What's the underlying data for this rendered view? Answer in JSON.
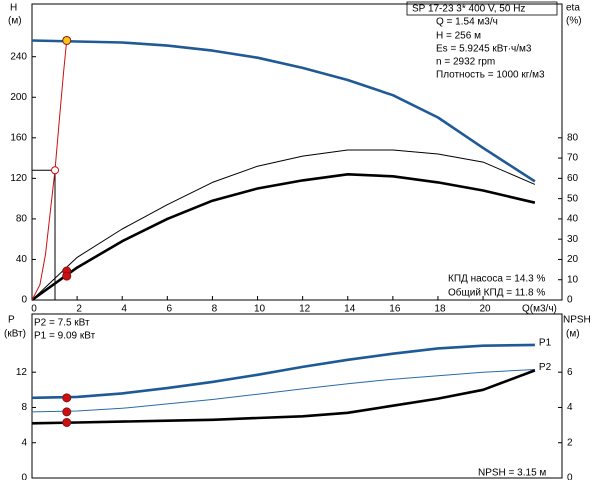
{
  "chart_data": [
    {
      "type": "line",
      "title": "SP 17-23   3* 400 V, 50 Hz",
      "annotations": [
        "Q = 1.54 м3/ч",
        "H = 256 м",
        "Es = 5.9245 кВт·ч/м3",
        "n = 2932 rpm",
        "Плотность = 1000 кг/м3",
        "КПД насоса = 14.3 %",
        "Общий КПД = 11.8 %"
      ],
      "ylabel": "H",
      "yunit": "(м)",
      "y2label": "eta",
      "y2unit": "(%)",
      "xlabel": "Q(м3/ч)",
      "xlim": [
        0,
        23.5
      ],
      "xticks": [
        0,
        2,
        4,
        6,
        8,
        10,
        12,
        14,
        16,
        18,
        20
      ],
      "ylim": [
        0,
        292
      ],
      "yticks": [
        0,
        40,
        80,
        120,
        160,
        200,
        240
      ],
      "y2lim": [
        0,
        146
      ],
      "y2ticks": [
        0,
        10,
        20,
        30,
        40,
        50,
        60,
        70,
        80
      ],
      "series": [
        {
          "color": "#1f5a96",
          "style": "thick",
          "x": [
            0,
            2,
            4,
            6,
            8,
            10,
            12,
            14,
            16,
            18,
            20,
            22.3
          ],
          "values": [
            256,
            255,
            254,
            251,
            246,
            239,
            229,
            217,
            202,
            180,
            150,
            117
          ]
        },
        {
          "color": "#000000",
          "style": "thin",
          "axis": "y2",
          "x": [
            0,
            2,
            4,
            6,
            8,
            10,
            12,
            14,
            16,
            18,
            20,
            22.3
          ],
          "values": [
            0,
            21,
            35,
            47,
            58,
            66,
            71,
            74,
            74,
            72,
            68,
            57
          ]
        },
        {
          "color": "#000000",
          "style": "thick",
          "axis": "y2",
          "x": [
            0,
            2,
            4,
            6,
            8,
            10,
            12,
            14,
            16,
            18,
            20,
            22.3
          ],
          "values": [
            0,
            16,
            29,
            40,
            49,
            55,
            59,
            62,
            61,
            58,
            54,
            48
          ]
        },
        {
          "color": "#cc1010",
          "style": "thin",
          "x": [
            0,
            0.35,
            0.6,
            0.85,
            1.02,
            1.2,
            1.4,
            1.54
          ],
          "values": [
            0,
            15,
            45,
            95,
            128,
            175,
            225,
            256
          ]
        }
      ],
      "points": [
        {
          "x": 1.54,
          "y": 256,
          "color": "#f5c518"
        },
        {
          "x": 1.02,
          "y": 128,
          "color": "#cc1010",
          "hollow": true
        },
        {
          "x": 1.54,
          "y": 14.3,
          "axis": "y2",
          "color": "#cc1010"
        },
        {
          "x": 1.54,
          "y": 11.8,
          "axis": "y2",
          "color": "#cc1010"
        }
      ]
    },
    {
      "type": "line",
      "annotations": [
        "P2 = 7.5 кВт",
        "P1 = 9.09 кВт",
        "NPSH = 3.15 м"
      ],
      "ylabel": "P",
      "yunit": "(кВт)",
      "y2label": "NPSH",
      "y2unit": "(м)",
      "xlim": [
        0,
        23.5
      ],
      "ylim": [
        0,
        18.6
      ],
      "yticks": [
        0,
        4,
        8,
        12
      ],
      "y2lim": [
        0,
        9.3
      ],
      "y2ticks": [
        0,
        2,
        4,
        6
      ],
      "series": [
        {
          "name": "P1",
          "color": "#1f5a96",
          "style": "thick",
          "x": [
            0,
            2,
            4,
            6,
            8,
            10,
            12,
            14,
            16,
            18,
            20,
            22.3
          ],
          "values": [
            9.1,
            9.2,
            9.6,
            10.2,
            10.9,
            11.7,
            12.6,
            13.4,
            14.1,
            14.7,
            15.0,
            15.1
          ]
        },
        {
          "name": "P2",
          "color": "#2a6aa8",
          "style": "thin",
          "x": [
            0,
            2,
            4,
            6,
            8,
            10,
            12,
            14,
            16,
            18,
            20,
            22.3
          ],
          "values": [
            7.5,
            7.6,
            7.9,
            8.4,
            8.9,
            9.5,
            10.1,
            10.7,
            11.2,
            11.6,
            12.0,
            12.3
          ]
        },
        {
          "color": "#000000",
          "style": "thick",
          "axis": "y2",
          "x": [
            0,
            2,
            4,
            6,
            8,
            10,
            12,
            14,
            16,
            18,
            20,
            22.3
          ],
          "values": [
            3.1,
            3.15,
            3.2,
            3.25,
            3.3,
            3.4,
            3.5,
            3.7,
            4.1,
            4.5,
            5.0,
            6.1
          ]
        }
      ],
      "points": [
        {
          "x": 1.54,
          "y": 9.09,
          "color": "#cc1010"
        },
        {
          "x": 1.54,
          "y": 7.5,
          "color": "#cc1010"
        },
        {
          "x": 1.54,
          "y": 3.15,
          "axis": "y2",
          "color": "#cc1010"
        }
      ]
    }
  ]
}
